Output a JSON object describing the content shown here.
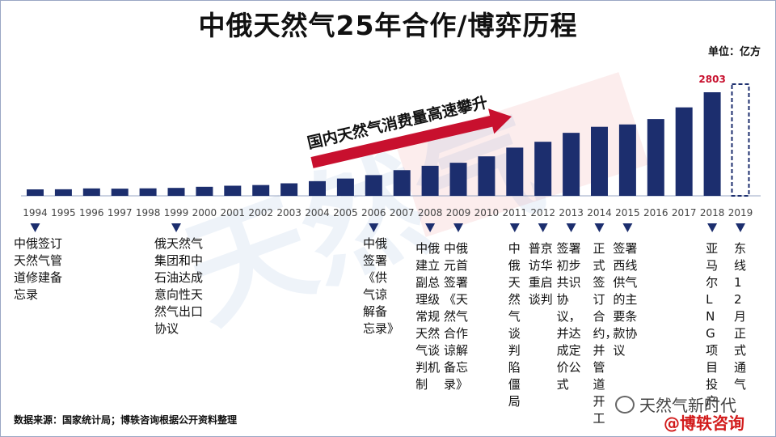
{
  "title": "中俄天然气25年合作/博弈历程",
  "unit": "单位：亿方",
  "arrow_text": "国内天然气消费量高速攀升",
  "source": "数据来源：国家统计局；博轶咨询根据公开资料整理",
  "watermark_wechat": "天然气新时代",
  "watermark_brand": "@博轶咨询",
  "chart_data": {
    "type": "bar",
    "categories": [
      "1994",
      "1995",
      "1996",
      "1997",
      "1998",
      "1999",
      "2000",
      "2001",
      "2002",
      "2003",
      "2004",
      "2005",
      "2006",
      "2007",
      "2008",
      "2009",
      "2010",
      "2011",
      "2012",
      "2013",
      "2014",
      "2015",
      "2016",
      "2017",
      "2018",
      "2019"
    ],
    "values": [
      175,
      178,
      201,
      195,
      203,
      215,
      245,
      274,
      292,
      339,
      397,
      468,
      561,
      695,
      813,
      895,
      1069,
      1305,
      1463,
      1705,
      1868,
      1932,
      2078,
      2394,
      2803,
      null
    ],
    "data_labels": {
      "2018": "2803"
    },
    "projected_category": "2019",
    "colors": {
      "bar": "#1c2e6e",
      "projected": "#1c2e6e",
      "data_label": "#c8102e",
      "arrow": "#c8102e"
    }
  },
  "events": [
    {
      "year": "1994",
      "text": "中俄签订\n天然气管\n道修建备\n忘录"
    },
    {
      "year": "1999",
      "text": "俄天然气\n集团和中\n石油达成\n意向性天\n然气出口\n协议"
    },
    {
      "year": "2006",
      "text": "中俄\n签署\n《供\n气谅\n解备\n忘录》"
    },
    {
      "year": "2008",
      "text": "中俄建立副总理级常规天然气谈判机制"
    },
    {
      "year": "2009",
      "text": "中俄元首签署《天然气合作谅解备忘录》"
    },
    {
      "year": "2011",
      "text": "中俄天然气谈判陷僵局"
    },
    {
      "year": "2012",
      "text": "普京访华重启谈判"
    },
    {
      "year": "2013",
      "text": "签署初步共识协议，并达成定价公式"
    },
    {
      "year": "2014",
      "text": "正式签订合约，并管道开工"
    },
    {
      "year": "2015",
      "text": "签署西线供气的主要条款协议"
    },
    {
      "year": "2018",
      "text": "亚马尔LNG项目投产"
    },
    {
      "year": "2019",
      "text": "东线12月正式通气"
    }
  ]
}
